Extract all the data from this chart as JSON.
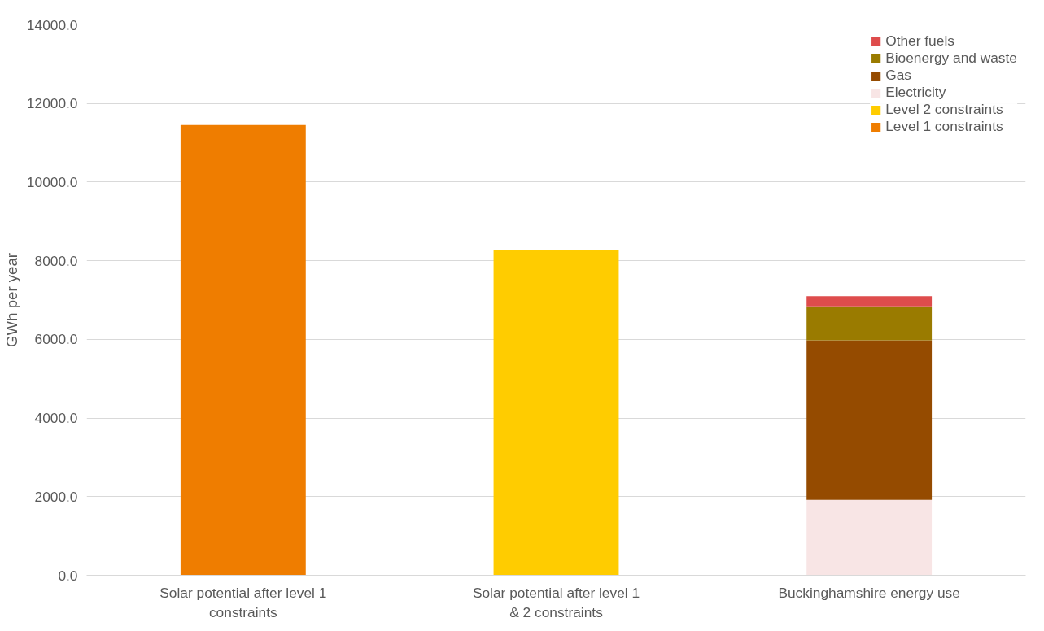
{
  "chart_data": {
    "type": "bar",
    "stacked": true,
    "ylabel": "GWh per year",
    "categories": [
      "Solar potential after level 1 constraints",
      "Solar potential after level 1 & 2 constraints",
      "Buckinghamshire energy use"
    ],
    "series": [
      {
        "name": "Level 1 constraints",
        "color": "#ef7d00",
        "values": [
          11450,
          null,
          null
        ]
      },
      {
        "name": "Level 2 constraints",
        "color": "#ffcc00",
        "values": [
          null,
          8280,
          null
        ]
      },
      {
        "name": "Electricity",
        "color": "#f8e5e5",
        "values": [
          null,
          null,
          1920
        ]
      },
      {
        "name": "Gas",
        "color": "#954b00",
        "values": [
          null,
          null,
          4055
        ]
      },
      {
        "name": "Bioenergy and waste",
        "color": "#9a7b00",
        "values": [
          null,
          null,
          865
        ]
      },
      {
        "name": "Other fuels",
        "color": "#de4c4c",
        "values": [
          null,
          null,
          260
        ]
      }
    ],
    "ylim": [
      0,
      14000
    ],
    "yticks": [
      {
        "value": 0,
        "label": "0.0"
      },
      {
        "value": 2000,
        "label": "2000.0"
      },
      {
        "value": 4000,
        "label": "4000.0"
      },
      {
        "value": 6000,
        "label": "6000.0"
      },
      {
        "value": 8000,
        "label": "8000.0"
      },
      {
        "value": 10000,
        "label": "10000.0"
      },
      {
        "value": 12000,
        "label": "12000.0"
      },
      {
        "value": 14000,
        "label": "14000.0"
      }
    ],
    "grid": "y",
    "legend": "top right"
  }
}
